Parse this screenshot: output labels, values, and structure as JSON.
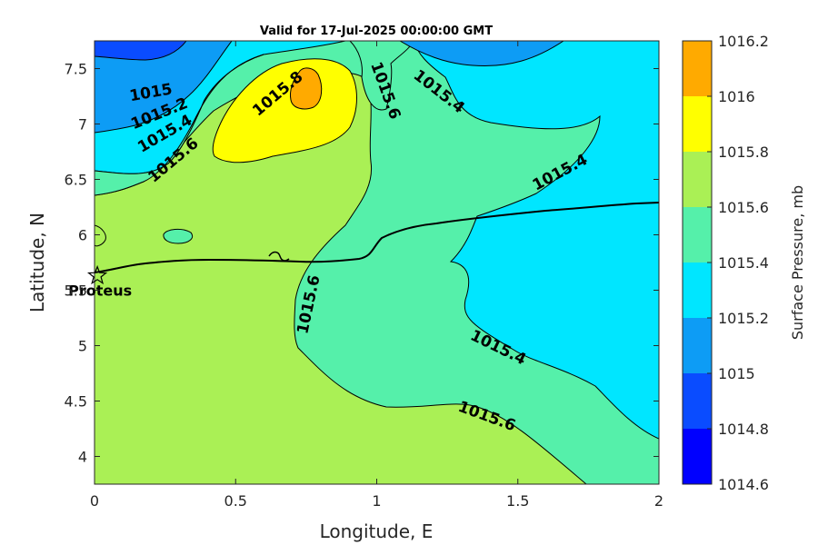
{
  "chart_data": {
    "type": "contour",
    "title": "Valid for 17-Jul-2025 00:00:00 GMT",
    "xlabel": "Longitude, E",
    "ylabel": "Latitude, N",
    "xlim": [
      0,
      2
    ],
    "ylim": [
      3.75,
      7.75
    ],
    "x_ticks": [
      0,
      0.5,
      1,
      1.5,
      2
    ],
    "x_tick_labels": [
      "0",
      "0.5",
      "1",
      "1.5",
      "2"
    ],
    "y_ticks": [
      4,
      4.5,
      5,
      5.5,
      6,
      6.5,
      7,
      7.5
    ],
    "y_tick_labels": [
      "4",
      "4.5",
      "5",
      "5.5",
      "6",
      "6.5",
      "7",
      "7.5"
    ],
    "colorbar": {
      "label": "Surface Pressure, mb",
      "levels": [
        1014.6,
        1014.8,
        1015,
        1015.2,
        1015.4,
        1015.6,
        1015.8,
        1016,
        1016.2
      ],
      "tick_labels": [
        "1014.6",
        "1014.8",
        "1015",
        "1015.2",
        "1015.4",
        "1015.6",
        "1015.8",
        "1016",
        "1016.2"
      ],
      "colors": [
        "#0000ff",
        "#0a4cff",
        "#0d9cf5",
        "#00e6ff",
        "#55f0aa",
        "#aaf055",
        "#ffff00",
        "#ffaa00",
        "#ff5500"
      ]
    },
    "contour_labels": [
      {
        "text": "1015",
        "lon": 0.2,
        "lat": 7.28,
        "angle": -10
      },
      {
        "text": "1015.2",
        "lon": 0.23,
        "lat": 7.09,
        "angle": -22
      },
      {
        "text": "1015.4",
        "lon": 0.25,
        "lat": 6.91,
        "angle": -30
      },
      {
        "text": "1015.6",
        "lon": 0.28,
        "lat": 6.67,
        "angle": -40
      },
      {
        "text": "1015.8",
        "lon": 0.65,
        "lat": 7.27,
        "angle": -40
      },
      {
        "text": "1015.6",
        "lon": 1.03,
        "lat": 7.3,
        "angle": 70
      },
      {
        "text": "1015.4",
        "lon": 1.22,
        "lat": 7.29,
        "angle": 38
      },
      {
        "text": "1015.4",
        "lon": 1.65,
        "lat": 6.56,
        "angle": -28
      },
      {
        "text": "1015.6",
        "lon": 0.76,
        "lat": 5.37,
        "angle": -78
      },
      {
        "text": "1015.4",
        "lon": 1.43,
        "lat": 4.98,
        "angle": 26
      },
      {
        "text": "1015.6",
        "lon": 1.39,
        "lat": 4.36,
        "angle": 20
      }
    ],
    "site": {
      "name": "Proteus",
      "lon": 0.01,
      "lat": 5.63,
      "marker": "star"
    }
  }
}
